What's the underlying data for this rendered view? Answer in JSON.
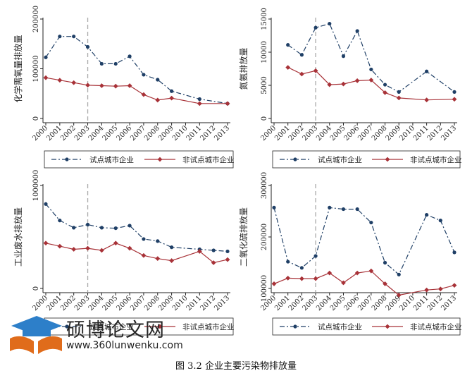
{
  "caption": "图 3.2  企业主要污染物排放量",
  "watermark": {
    "title": "硕博论文网",
    "url": "www.360lunwenku.com"
  },
  "colors": {
    "pilot": "#1f3f66",
    "nonpilot": "#a83238",
    "policy_line": "#aaaaaa"
  },
  "chart_data": [
    {
      "type": "line",
      "ylabel": "化学需氧量排放量",
      "ylim": [
        0,
        200000
      ],
      "yticks": [
        0,
        100000,
        200000
      ],
      "categories": [
        "2000",
        "2001",
        "2002",
        "2003",
        "2004",
        "2005",
        "2006",
        "2007",
        "2008",
        "2009",
        "2010",
        "2011",
        "2012",
        "2013"
      ],
      "policy_year": "2003",
      "legend": [
        "试点城市企业",
        "非试点城市企业"
      ],
      "series": [
        {
          "name": "试点城市企业",
          "values": [
            123000,
            165000,
            165000,
            144000,
            110000,
            110000,
            125000,
            88000,
            78000,
            55000,
            null,
            39000,
            null,
            30000
          ]
        },
        {
          "name": "非试点城市企业",
          "values": [
            82000,
            77000,
            72000,
            67000,
            66000,
            65000,
            66000,
            48000,
            37000,
            41000,
            null,
            30000,
            null,
            30000
          ]
        }
      ]
    },
    {
      "type": "line",
      "ylabel": "氮氨排放量",
      "ylim": [
        0,
        15000
      ],
      "yticks": [
        0,
        5000,
        10000,
        15000
      ],
      "categories": [
        "2000",
        "2001",
        "2002",
        "2003",
        "2004",
        "2005",
        "2006",
        "2007",
        "2008",
        "2009",
        "2010",
        "2011",
        "2012",
        "2013"
      ],
      "policy_year": "2003",
      "legend": [
        "试点城市企业",
        "非试点城市企业"
      ],
      "series": [
        {
          "name": "试点城市企业",
          "values": [
            null,
            11100,
            9600,
            13700,
            14300,
            9400,
            13200,
            7400,
            5100,
            4000,
            null,
            7100,
            null,
            4000
          ]
        },
        {
          "name": "非试点城市企业",
          "values": [
            null,
            7700,
            6700,
            7200,
            5100,
            5200,
            5700,
            5800,
            3900,
            3100,
            null,
            2800,
            null,
            2900
          ]
        }
      ]
    },
    {
      "type": "line",
      "ylabel": "工业废水排放量",
      "ylim": [
        0,
        1000000
      ],
      "yticks": [
        0,
        1000000
      ],
      "categories": [
        "2000",
        "2001",
        "2002",
        "2003",
        "2004",
        "2005",
        "2006",
        "2007",
        "2008",
        "2009",
        "2010",
        "2011",
        "2012",
        "2013"
      ],
      "policy_year": "2003",
      "legend": [
        "试点城市企业",
        "非试点城市企业"
      ],
      "series": [
        {
          "name": "试点城市企业",
          "values": [
            820000,
            660000,
            590000,
            620000,
            590000,
            585000,
            610000,
            480000,
            460000,
            400000,
            null,
            380000,
            370000,
            360000
          ]
        },
        {
          "name": "非试点城市企业",
          "values": [
            440000,
            410000,
            380000,
            390000,
            370000,
            440000,
            390000,
            320000,
            290000,
            270000,
            null,
            360000,
            250000,
            280000
          ]
        }
      ]
    },
    {
      "type": "line",
      "ylabel": "二氧化硫排放量",
      "ylim": [
        100000,
        300000
      ],
      "yticks": [
        100000,
        200000,
        300000
      ],
      "categories": [
        "2000",
        "2001",
        "2002",
        "2003",
        "2004",
        "2005",
        "2006",
        "2007",
        "2008",
        "2009",
        "2010",
        "2011",
        "2012",
        "2013"
      ],
      "policy_year": "2003",
      "legend": [
        "试点城市企业",
        "非试点城市企业"
      ],
      "series": [
        {
          "name": "试点城市企业",
          "values": [
            257000,
            152000,
            140000,
            163000,
            257000,
            254000,
            254000,
            228000,
            150000,
            127000,
            null,
            243000,
            232000,
            170000
          ]
        },
        {
          "name": "非试点城市企业",
          "values": [
            109000,
            120000,
            119000,
            119000,
            130000,
            111000,
            130000,
            134000,
            109000,
            87000,
            null,
            97000,
            99000,
            106000
          ]
        }
      ]
    }
  ]
}
